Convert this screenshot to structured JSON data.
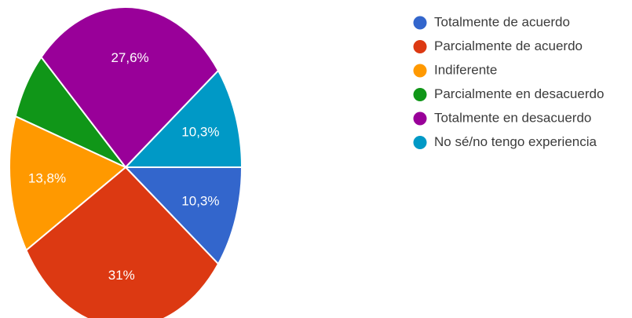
{
  "chart_data": {
    "type": "pie",
    "series": [
      {
        "name": "Totalmente de acuerdo",
        "value": 10.3,
        "label": "10,3%",
        "color": "#3366cc"
      },
      {
        "name": "Parcialmente de acuerdo",
        "value": 31.0,
        "label": "31%",
        "color": "#dc3912"
      },
      {
        "name": "Indiferente",
        "value": 13.8,
        "label": "13,8%",
        "color": "#ff9900"
      },
      {
        "name": "Parcialmente en desacuerdo",
        "value": 6.9,
        "label": "",
        "color": "#109618"
      },
      {
        "name": "Totalmente en desacuerdo",
        "value": 27.6,
        "label": "27,6%",
        "color": "#990099"
      },
      {
        "name": "No sé/no tengo experiencia",
        "value": 10.3,
        "label": "10,3%",
        "color": "#0099c6"
      }
    ],
    "legend_position": "right"
  }
}
